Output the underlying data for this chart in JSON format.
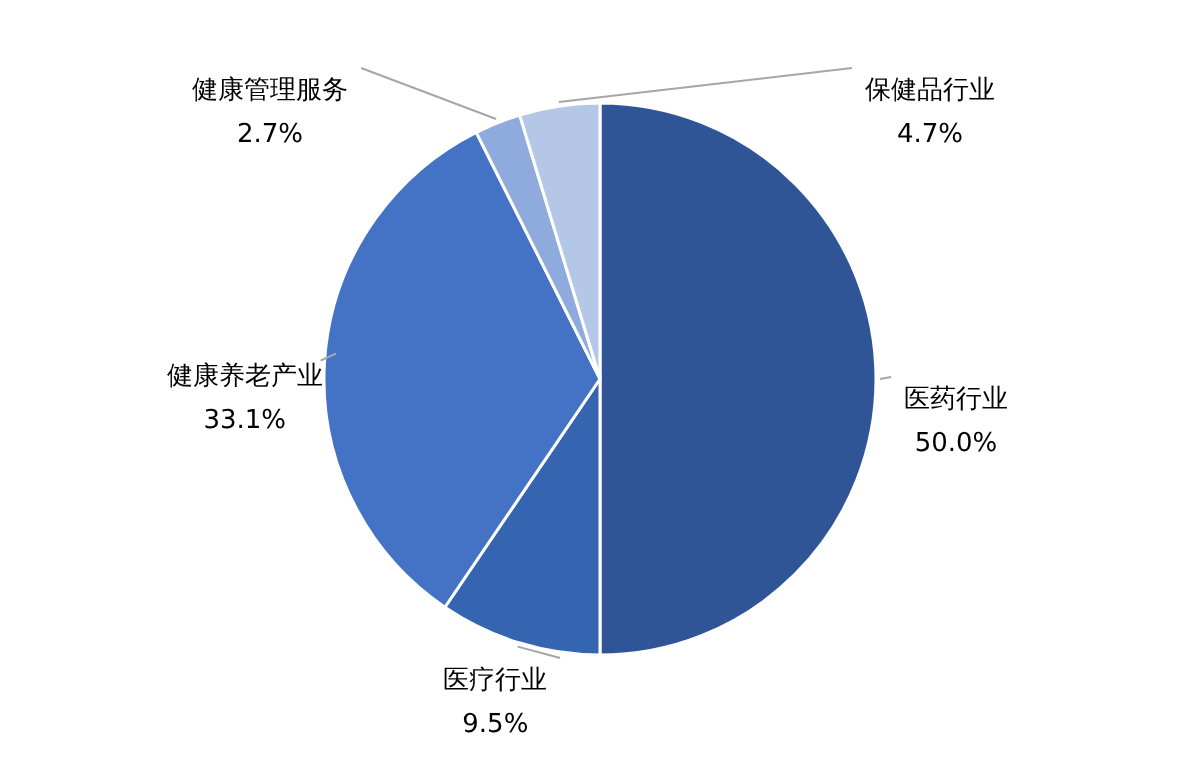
{
  "chart_data": {
    "type": "pie",
    "categories": [
      "医药行业",
      "医疗行业",
      "健康养老产业",
      "健康管理服务",
      "保健品行业"
    ],
    "values": [
      50.0,
      9.5,
      33.1,
      2.7,
      4.7
    ],
    "colors": [
      "#2f5597",
      "#3565b0",
      "#4472c4",
      "#8faadc",
      "#b4c7e7"
    ],
    "value_labels": [
      "50.0%",
      "9.5%",
      "33.1%",
      "2.7%",
      "4.7%"
    ]
  }
}
